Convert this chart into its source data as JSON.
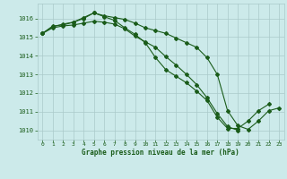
{
  "title": "Graphe pression niveau de la mer (hPa)",
  "x_hours": [
    0,
    1,
    2,
    3,
    4,
    5,
    6,
    7,
    8,
    9,
    10,
    11,
    12,
    13,
    14,
    15,
    16,
    17,
    18,
    19,
    20,
    21,
    22,
    23
  ],
  "line1": [
    1015.2,
    1015.6,
    1015.65,
    1015.8,
    1016.05,
    1016.3,
    1016.15,
    1016.05,
    1015.95,
    1015.75,
    1015.5,
    1015.35,
    1015.2,
    1014.95,
    1014.7,
    1014.45,
    1013.9,
    1013.0,
    1011.05,
    1010.25,
    1010.05,
    1010.5,
    1011.05,
    1011.2
  ],
  "line2": [
    1015.2,
    1015.55,
    1015.7,
    1015.8,
    1016.0,
    1016.3,
    1016.1,
    1015.9,
    1015.5,
    1015.15,
    1014.7,
    1013.9,
    1013.25,
    1012.9,
    1012.55,
    1012.1,
    1011.6,
    1010.7,
    1010.1,
    1010.1,
    1010.5,
    1011.05,
    1011.4,
    null
  ],
  "line3": [
    1015.2,
    1015.5,
    1015.6,
    1015.65,
    1015.75,
    1015.85,
    1015.8,
    1015.7,
    1015.45,
    1015.05,
    1014.75,
    1014.45,
    1013.95,
    1013.5,
    1013.0,
    1012.45,
    1011.75,
    1010.9,
    1010.2,
    1010.0,
    null,
    null,
    null,
    null
  ],
  "line_color": "#1a5c1a",
  "bg_color": "#cceaea",
  "grid_color": "#aacaca",
  "ylim": [
    1009.5,
    1016.8
  ],
  "yticks": [
    1010,
    1011,
    1012,
    1013,
    1014,
    1015,
    1016
  ],
  "xticks": [
    0,
    1,
    2,
    3,
    4,
    5,
    6,
    7,
    8,
    9,
    10,
    11,
    12,
    13,
    14,
    15,
    16,
    17,
    18,
    19,
    20,
    21,
    22,
    23
  ],
  "marker_size": 2.0,
  "line_width": 0.8
}
